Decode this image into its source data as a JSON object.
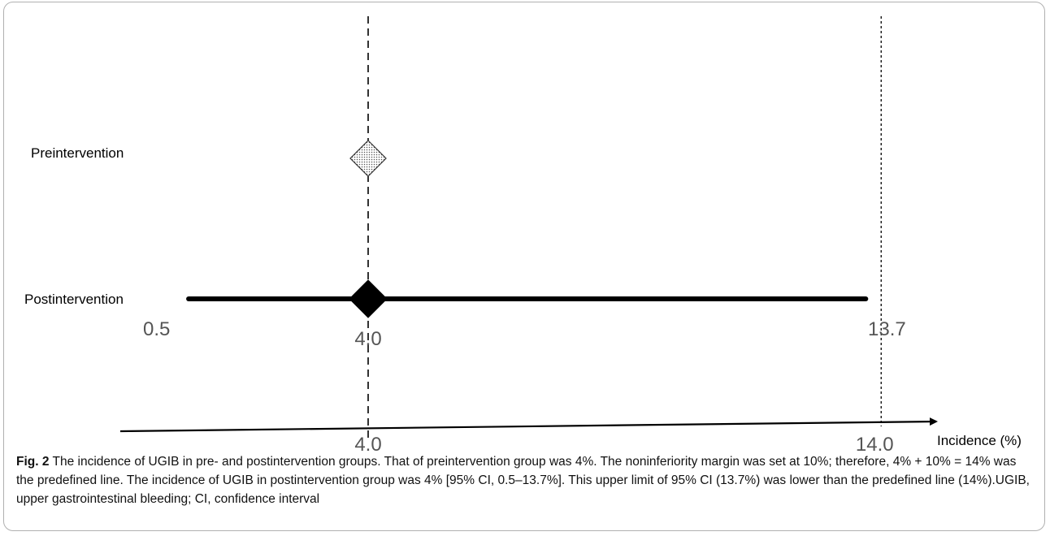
{
  "chart_data": {
    "type": "forest",
    "groups": [
      {
        "name": "Preintervention",
        "estimate": 4.0,
        "ci": null,
        "marker": "diamond-dotted"
      },
      {
        "name": "Postintervention",
        "estimate": 4.0,
        "ci": [
          0.5,
          13.7
        ],
        "marker": "diamond-filled"
      }
    ],
    "value_labels": {
      "ci_low": "0.5",
      "estimate": "4.0",
      "ci_high": "13.7"
    },
    "axis": {
      "label": "Incidence (%)",
      "ticks": [
        {
          "value": 4.0,
          "label": "4.0"
        },
        {
          "value": 14.0,
          "label": "14.0"
        }
      ],
      "xlim": [
        -0.8,
        15.2
      ]
    },
    "reference_lines": [
      {
        "value": 4.0,
        "style": "dashed"
      },
      {
        "value": 14.0,
        "style": "dotted"
      }
    ]
  },
  "caption": {
    "label": "Fig. 2",
    "text": " The incidence of UGIB in pre- and postintervention groups. That of preintervention group was 4%. The noninferiority margin was set at 10%; therefore, 4% + 10% = 14% was the predefined line. The incidence of UGIB in postintervention group was 4% [95% CI, 0.5–13.7%]. This upper limit of 95% CI (13.7%) was lower than the predefined line (14%).UGIB, upper gastrointestinal bleeding; CI, confidence interval"
  }
}
